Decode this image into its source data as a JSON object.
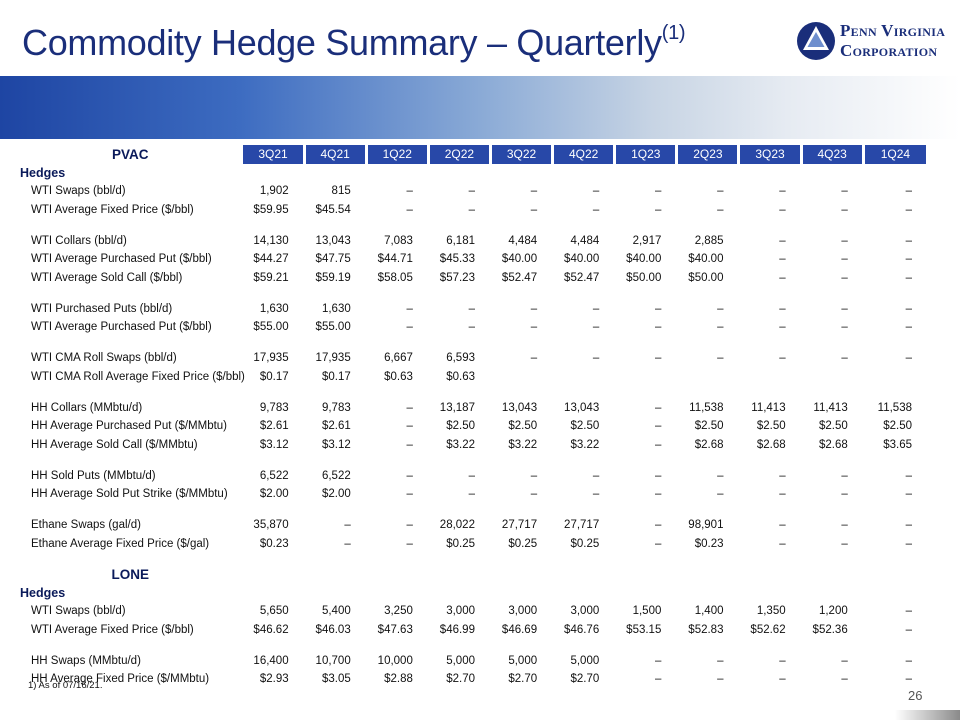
{
  "title": "Commodity Hedge Summary – Quarterly",
  "title_superscript": "(1)",
  "logo": {
    "line1": "Penn Virginia",
    "line2": "Corporation"
  },
  "quarters": [
    "3Q21",
    "4Q21",
    "1Q22",
    "2Q22",
    "3Q22",
    "4Q22",
    "1Q23",
    "2Q23",
    "3Q23",
    "4Q23",
    "1Q24"
  ],
  "sections": [
    {
      "name": "PVAC",
      "subheader": "Hedges",
      "groups": [
        [
          {
            "label": "WTI Swaps (bbl/d)",
            "values": [
              "1,902",
              "815",
              "–",
              "–",
              "–",
              "–",
              "–",
              "–",
              "–",
              "–",
              "–"
            ]
          },
          {
            "label": "WTI Average Fixed Price ($/bbl)",
            "values": [
              "$59.95",
              "$45.54",
              "–",
              "–",
              "–",
              "–",
              "–",
              "–",
              "–",
              "–",
              "–"
            ]
          }
        ],
        [
          {
            "label": "WTI Collars (bbl/d)",
            "values": [
              "14,130",
              "13,043",
              "7,083",
              "6,181",
              "4,484",
              "4,484",
              "2,917",
              "2,885",
              "–",
              "–",
              "–"
            ]
          },
          {
            "label": "WTI Average Purchased Put ($/bbl)",
            "values": [
              "$44.27",
              "$47.75",
              "$44.71",
              "$45.33",
              "$40.00",
              "$40.00",
              "$40.00",
              "$40.00",
              "–",
              "–",
              "–"
            ]
          },
          {
            "label": "WTI Average Sold Call ($/bbl)",
            "values": [
              "$59.21",
              "$59.19",
              "$58.05",
              "$57.23",
              "$52.47",
              "$52.47",
              "$50.00",
              "$50.00",
              "–",
              "–",
              "–"
            ]
          }
        ],
        [
          {
            "label": "WTI Purchased Puts (bbl/d)",
            "values": [
              "1,630",
              "1,630",
              "–",
              "–",
              "–",
              "–",
              "–",
              "–",
              "–",
              "–",
              "–"
            ]
          },
          {
            "label": "WTI Average Purchased Put ($/bbl)",
            "values": [
              "$55.00",
              "$55.00",
              "–",
              "–",
              "–",
              "–",
              "–",
              "–",
              "–",
              "–",
              "–"
            ]
          }
        ],
        [
          {
            "label": "WTI CMA Roll Swaps (bbl/d)",
            "values": [
              "17,935",
              "17,935",
              "6,667",
              "6,593",
              "–",
              "–",
              "–",
              "–",
              "–",
              "–",
              "–"
            ]
          },
          {
            "label": "WTI CMA Roll Average Fixed Price ($/bbl)",
            "values": [
              "$0.17",
              "$0.17",
              "$0.63",
              "$0.63",
              "",
              "",
              "",
              "",
              "",
              "",
              ""
            ]
          }
        ],
        [
          {
            "label": "HH Collars (MMbtu/d)",
            "values": [
              "9,783",
              "9,783",
              "–",
              "13,187",
              "13,043",
              "13,043",
              "–",
              "11,538",
              "11,413",
              "11,413",
              "11,538"
            ]
          },
          {
            "label": "HH Average Purchased Put ($/MMbtu)",
            "values": [
              "$2.61",
              "$2.61",
              "–",
              "$2.50",
              "$2.50",
              "$2.50",
              "–",
              "$2.50",
              "$2.50",
              "$2.50",
              "$2.50"
            ]
          },
          {
            "label": "HH Average Sold Call ($/MMbtu)",
            "values": [
              "$3.12",
              "$3.12",
              "–",
              "$3.22",
              "$3.22",
              "$3.22",
              "–",
              "$2.68",
              "$2.68",
              "$2.68",
              "$3.65"
            ]
          }
        ],
        [
          {
            "label": "HH Sold Puts (MMbtu/d)",
            "values": [
              "6,522",
              "6,522",
              "–",
              "–",
              "–",
              "–",
              "–",
              "–",
              "–",
              "–",
              "–"
            ]
          },
          {
            "label": "HH Average Sold Put Strike ($/MMbtu)",
            "values": [
              "$2.00",
              "$2.00",
              "–",
              "–",
              "–",
              "–",
              "–",
              "–",
              "–",
              "–",
              "–"
            ]
          }
        ],
        [
          {
            "label": "Ethane Swaps (gal/d)",
            "values": [
              "35,870",
              "–",
              "–",
              "28,022",
              "27,717",
              "27,717",
              "–",
              "98,901",
              "–",
              "–",
              "–"
            ]
          },
          {
            "label": "Ethane Average Fixed Price ($/gal)",
            "values": [
              "$0.23",
              "–",
              "–",
              "$0.25",
              "$0.25",
              "$0.25",
              "–",
              "$0.23",
              "–",
              "–",
              "–"
            ]
          }
        ]
      ]
    },
    {
      "name": "LONE",
      "subheader": "Hedges",
      "groups": [
        [
          {
            "label": "WTI Swaps (bbl/d)",
            "values": [
              "5,650",
              "5,400",
              "3,250",
              "3,000",
              "3,000",
              "3,000",
              "1,500",
              "1,400",
              "1,350",
              "1,200",
              "–"
            ]
          },
          {
            "label": "WTI Average Fixed Price ($/bbl)",
            "values": [
              "$46.62",
              "$46.03",
              "$47.63",
              "$46.99",
              "$46.69",
              "$46.76",
              "$53.15",
              "$52.83",
              "$52.62",
              "$52.36",
              "–"
            ]
          }
        ],
        [
          {
            "label": "HH Swaps (MMbtu/d)",
            "values": [
              "16,400",
              "10,700",
              "10,000",
              "5,000",
              "5,000",
              "5,000",
              "–",
              "–",
              "–",
              "–",
              "–"
            ]
          },
          {
            "label": "HH Average Fixed Price ($/MMbtu)",
            "values": [
              "$2.93",
              "$3.05",
              "$2.88",
              "$2.70",
              "$2.70",
              "$2.70",
              "–",
              "–",
              "–",
              "–",
              "–"
            ]
          }
        ]
      ]
    }
  ],
  "footnote": "1)   As of 07/16/21.",
  "page_number": "26"
}
